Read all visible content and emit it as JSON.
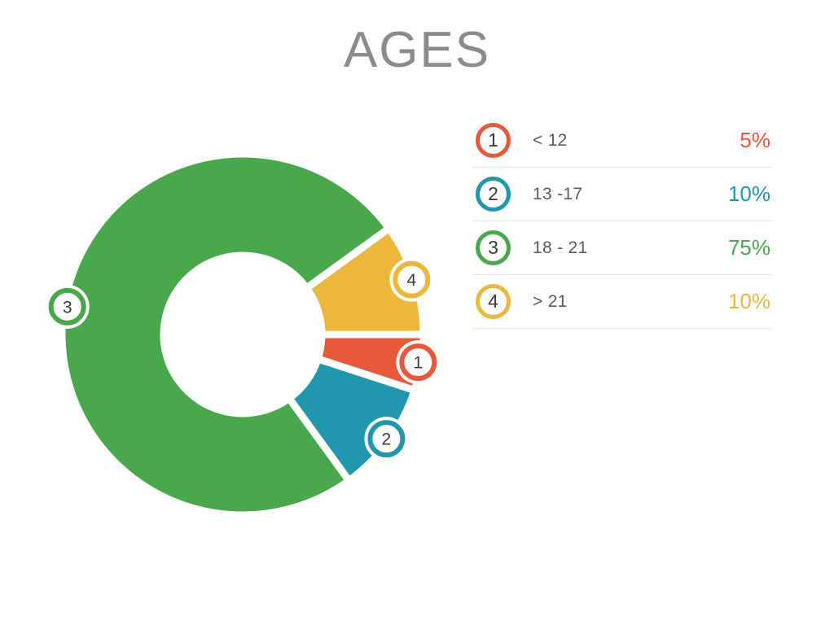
{
  "title": "AGES",
  "legend": {
    "items": [
      {
        "number": "1",
        "label": "< 12",
        "value": "5%",
        "color": "#e8593a"
      },
      {
        "number": "2",
        "label": "13 -17",
        "value": "10%",
        "color": "#2197ad"
      },
      {
        "number": "3",
        "label": "18 - 21",
        "value": "75%",
        "color": "#49a84c"
      },
      {
        "number": "4",
        "label": "> 21",
        "value": "10%",
        "color": "#ecb73d"
      }
    ]
  },
  "chart_data": {
    "type": "pie",
    "subtype": "donut",
    "title": "AGES",
    "categories": [
      "< 12",
      "13 -17",
      "18 - 21",
      "> 21"
    ],
    "values": [
      5,
      10,
      75,
      10
    ],
    "colors": [
      "#e8593a",
      "#2197ad",
      "#49a84c",
      "#ecb73d"
    ],
    "marker_numbers": [
      "1",
      "2",
      "3",
      "4"
    ],
    "slice_order": [
      3,
      0,
      1,
      2
    ],
    "start_angle_deg": 54,
    "geometry": {
      "outer_radius": 222,
      "inner_radius": 97,
      "marker_orbit_radius": 218,
      "gap_stroke": 9,
      "marker_halo_radius": 27,
      "marker_ring_radius": 20,
      "marker_ring_stroke": 6
    },
    "marker_text_color": "#3b3b3b",
    "legend_position": "right",
    "background": "#ffffff"
  }
}
